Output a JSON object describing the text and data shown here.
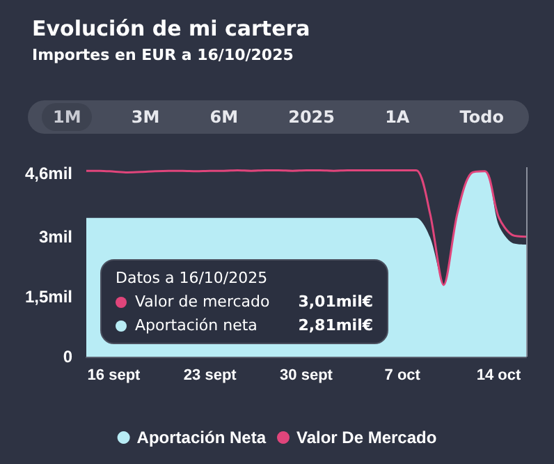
{
  "chart_data": {
    "type": "area",
    "title": "Evolución de mi cartera",
    "subtitle": "Importes en EUR a 16/10/2025",
    "annotations": [
      "1M",
      "3M",
      "6M",
      "2025",
      "1A",
      "Todo",
      "Datos a 16/10/2025",
      "Valor de mercado",
      "3,01mil€",
      "Aportación neta",
      "2,81mil€"
    ],
    "x": [
      "2025-09-14",
      "2025-09-15",
      "2025-09-16",
      "2025-09-17",
      "2025-09-18",
      "2025-09-19",
      "2025-09-20",
      "2025-09-21",
      "2025-09-22",
      "2025-09-23",
      "2025-09-24",
      "2025-09-25",
      "2025-09-26",
      "2025-09-27",
      "2025-09-28",
      "2025-09-29",
      "2025-09-30",
      "2025-10-01",
      "2025-10-02",
      "2025-10-03",
      "2025-10-04",
      "2025-10-05",
      "2025-10-06",
      "2025-10-07",
      "2025-10-08",
      "2025-10-09",
      "2025-10-10",
      "2025-10-11",
      "2025-10-12",
      "2025-10-13",
      "2025-10-14",
      "2025-10-15",
      "2025-10-16"
    ],
    "series": [
      {
        "name": "Aportación Neta",
        "color": "#b8ecf5",
        "values": [
          3.48,
          3.48,
          3.48,
          3.48,
          3.48,
          3.48,
          3.48,
          3.48,
          3.48,
          3.48,
          3.48,
          3.48,
          3.48,
          3.48,
          3.48,
          3.48,
          3.48,
          3.48,
          3.48,
          3.48,
          3.48,
          3.48,
          3.48,
          3.48,
          3.48,
          3.0,
          1.8,
          3.6,
          4.6,
          4.65,
          3.3,
          2.85,
          2.81
        ]
      },
      {
        "name": "Valor De Mercado",
        "type": "line",
        "color": "#e0457b",
        "values": [
          4.66,
          4.66,
          4.64,
          4.62,
          4.63,
          4.65,
          4.66,
          4.66,
          4.65,
          4.66,
          4.66,
          4.67,
          4.66,
          4.67,
          4.67,
          4.66,
          4.67,
          4.67,
          4.66,
          4.67,
          4.67,
          4.67,
          4.67,
          4.67,
          4.67,
          3.6,
          1.8,
          3.6,
          4.6,
          4.65,
          3.5,
          3.05,
          3.01
        ]
      }
    ],
    "xlim": [
      "2025-09-14",
      "2025-10-16"
    ],
    "xticks": [
      {
        "value": "2025-09-16",
        "label": "16 sept"
      },
      {
        "value": "2025-09-23",
        "label": "23 sept"
      },
      {
        "value": "2025-09-30",
        "label": "30 sept"
      },
      {
        "value": "2025-10-07",
        "label": "7 oct"
      },
      {
        "value": "2025-10-14",
        "label": "14 oct"
      }
    ],
    "ylim": [
      0,
      4.75
    ],
    "yticks": [
      0,
      {
        "value": 1.5,
        "label": "1,5mil"
      },
      {
        "value": 3,
        "label": "3mil"
      },
      {
        "value": 4.6,
        "label": "4,6mil"
      }
    ],
    "ref_lines": [
      {
        "axis": "x",
        "value": "2025-10-16",
        "color": "#8a8f9c"
      }
    ],
    "grid": false,
    "legend": "bottom",
    "marker": "none"
  }
}
